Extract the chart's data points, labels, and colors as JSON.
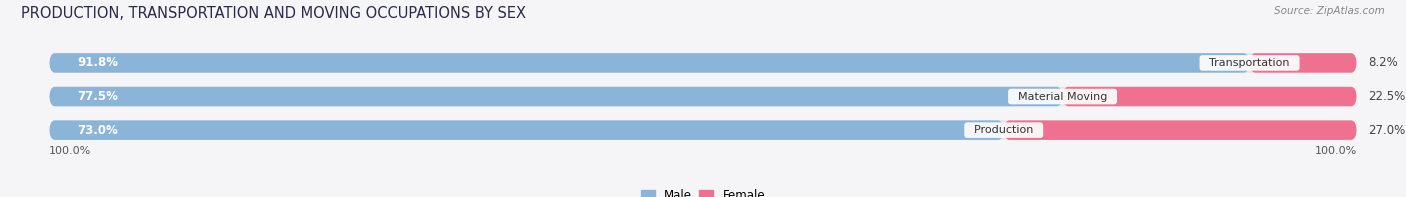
{
  "title": "PRODUCTION, TRANSPORTATION AND MOVING OCCUPATIONS BY SEX",
  "source": "Source: ZipAtlas.com",
  "categories": [
    "Transportation",
    "Material Moving",
    "Production"
  ],
  "male_pct": [
    91.8,
    77.5,
    73.0
  ],
  "female_pct": [
    8.2,
    22.5,
    27.0
  ],
  "male_color": "#8ab4d8",
  "female_color": "#f07090",
  "bar_bg_color": "#e4e4ec",
  "bg_color": "#f5f5f8",
  "axis_label_left": "100.0%",
  "axis_label_right": "100.0%",
  "legend_male": "Male",
  "legend_female": "Female",
  "title_fontsize": 10.5,
  "source_fontsize": 7.5,
  "bar_height": 0.58,
  "fig_width": 14.06,
  "fig_height": 1.97
}
